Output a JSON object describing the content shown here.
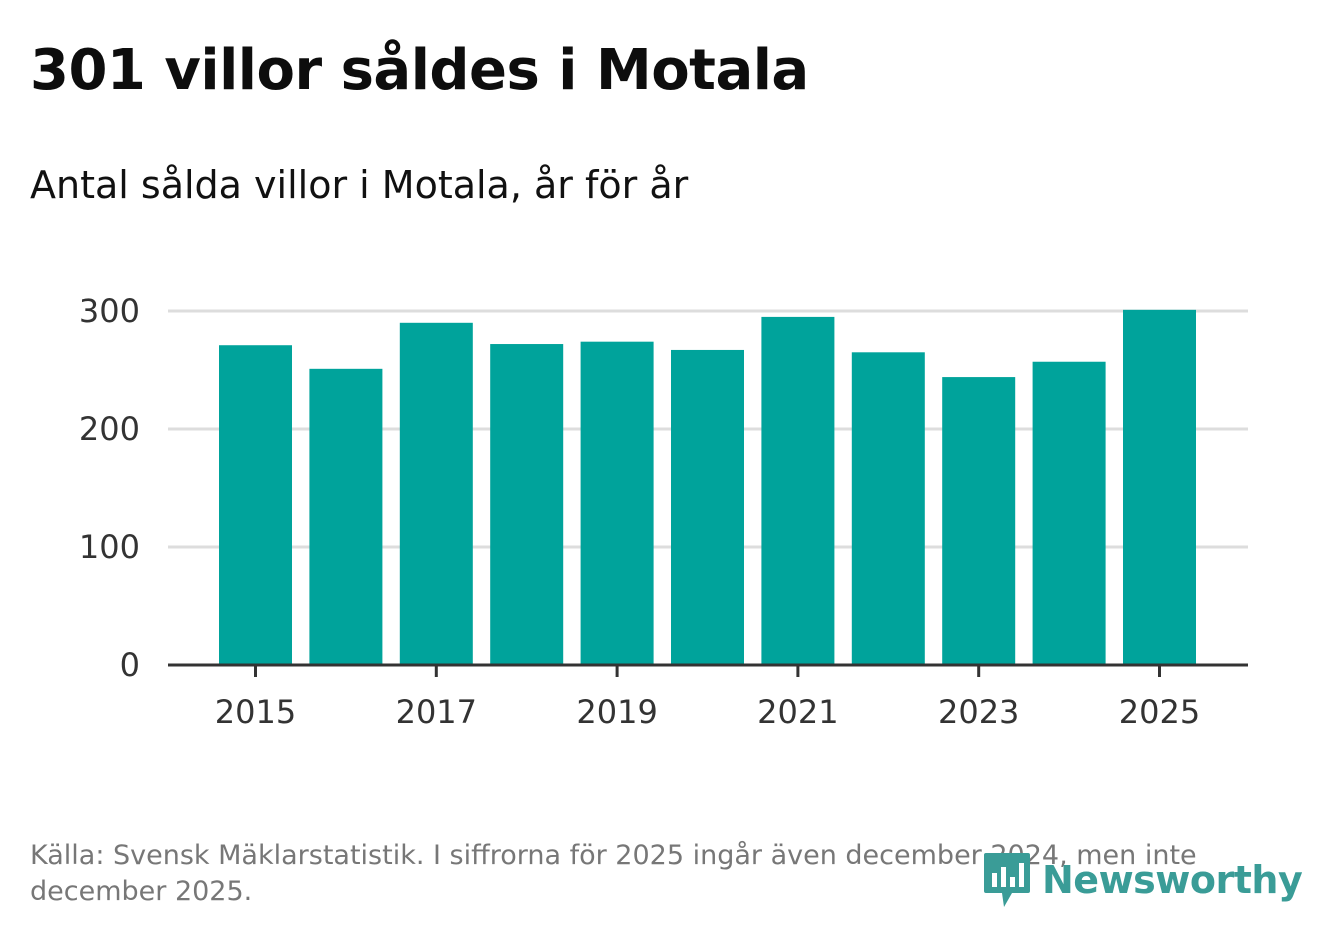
{
  "header": {
    "title": "301 villor såldes i Motala",
    "subtitle": "Antal sålda villor i Motala, år för år"
  },
  "footer": {
    "source_text": "Källa: Svensk Mäklarstatistik. I siffrorna för 2025 ingår även december 2024, men inte december 2025."
  },
  "logo": {
    "text": "Newsworthy",
    "icon": "newsworthy-bar-chart-icon"
  },
  "colors": {
    "bar": "#00a39b",
    "grid": "#dddddd",
    "axis": "#333333",
    "logo": "#3a9c97"
  },
  "chart_data": {
    "type": "bar",
    "title": "301 villor såldes i Motala",
    "subtitle": "Antal sålda villor i Motala, år för år",
    "xlabel": "",
    "ylabel": "",
    "categories": [
      "2015",
      "2016",
      "2017",
      "2018",
      "2019",
      "2020",
      "2021",
      "2022",
      "2023",
      "2024",
      "2025"
    ],
    "values": [
      271,
      251,
      290,
      272,
      274,
      267,
      295,
      265,
      244,
      257,
      301
    ],
    "x_tick_labels": [
      "2015",
      "2017",
      "2019",
      "2021",
      "2023",
      "2025"
    ],
    "y_ticks": [
      0,
      100,
      200,
      300
    ],
    "ylim": [
      0,
      300
    ],
    "grid": true
  }
}
